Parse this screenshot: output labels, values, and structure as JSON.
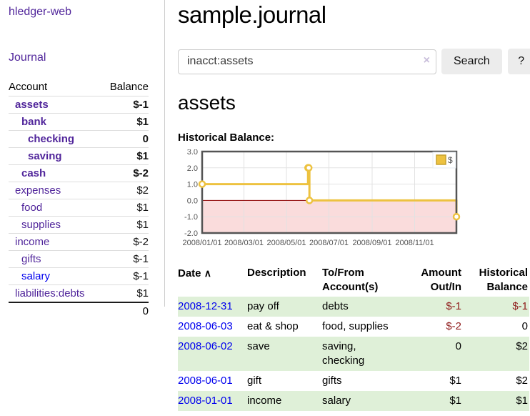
{
  "colors": {
    "link_purple": "#51269b",
    "link_blue": "#0000ee",
    "negative_red": "#8f1c1c",
    "negative_muted": "#bb6a72",
    "stripe_green": "#dff0d8",
    "button_gray": "#ececec",
    "chart_gold": "#edc240",
    "chart_border": "#545454"
  },
  "sidebar": {
    "app_title": "hledger-web",
    "journal_label": "Journal",
    "table": {
      "account_header": "Account",
      "balance_header": "Balance"
    },
    "accounts": [
      {
        "name": "assets",
        "indent": 0,
        "bold": true,
        "balance": "$-1",
        "balance_style": "neg"
      },
      {
        "name": "bank",
        "indent": 1,
        "bold": true,
        "balance": "$1",
        "balance_style": ""
      },
      {
        "name": "checking",
        "indent": 2,
        "bold": true,
        "balance": "0",
        "balance_style": ""
      },
      {
        "name": "saving",
        "indent": 2,
        "bold": true,
        "balance": "$1",
        "balance_style": ""
      },
      {
        "name": "cash",
        "indent": 1,
        "bold": true,
        "balance": "$-2",
        "balance_style": "neg"
      },
      {
        "name": "expenses",
        "indent": 0,
        "bold": false,
        "balance": "$2",
        "balance_style": ""
      },
      {
        "name": "food",
        "indent": 1,
        "bold": false,
        "balance": "$1",
        "balance_style": ""
      },
      {
        "name": "supplies",
        "indent": 1,
        "bold": false,
        "balance": "$1",
        "balance_style": ""
      },
      {
        "name": "income",
        "indent": 0,
        "bold": false,
        "balance": "$-2",
        "balance_style": "neg-muted"
      },
      {
        "name": "gifts",
        "indent": 1,
        "bold": false,
        "balance": "$-1",
        "balance_style": "neg-muted"
      },
      {
        "name": "salary",
        "indent": 1,
        "bold": false,
        "link_style": "blue",
        "balance": "$-1",
        "balance_style": "neg-muted"
      },
      {
        "name": "liabilities:debts",
        "indent": 0,
        "bold": false,
        "balance": "$1",
        "balance_style": ""
      }
    ],
    "total": "0"
  },
  "main": {
    "title": "sample.journal",
    "account_heading": "assets",
    "chart_title": "Historical Balance:"
  },
  "search": {
    "query": "inacct:assets",
    "clear_icon": "×",
    "button_label": "Search",
    "help_label": "?"
  },
  "chart_data": {
    "type": "line",
    "style": "step",
    "title": "Historical Balance",
    "series": [
      {
        "name": "$",
        "color": "#edc240",
        "points": [
          [
            "2008-01-01",
            1
          ],
          [
            "2008-06-01",
            2
          ],
          [
            "2008-06-02",
            2
          ],
          [
            "2008-06-03",
            0
          ],
          [
            "2008-12-31",
            -1
          ]
        ]
      }
    ],
    "ylim": [
      -2,
      3
    ],
    "yticks": [
      3,
      2,
      1,
      0,
      -1,
      -2
    ],
    "xticks": [
      "2008/01/01",
      "2008/03/01",
      "2008/05/01",
      "2008/07/01",
      "2008/09/01",
      "2008/11/01"
    ],
    "legend": {
      "label": "$",
      "position": "top-right"
    },
    "grid": true,
    "negative_fill": "#fadcdc",
    "zero_line_color": "#8b0000"
  },
  "register": {
    "headers": {
      "date": "Date",
      "sort_icon": "∧",
      "description": "Description",
      "account": "To/From Account(s)",
      "amount": "Amount Out/In",
      "balance": "Historical Balance"
    },
    "rows": [
      {
        "date": "2008-12-31",
        "description": "pay off",
        "accounts": "debts",
        "amount": "$-1",
        "amount_neg": true,
        "balance": "$-1",
        "balance_neg": true
      },
      {
        "date": "2008-06-03",
        "description": "eat & shop",
        "accounts": "food, supplies",
        "amount": "$-2",
        "amount_neg": true,
        "balance": "0",
        "balance_neg": false
      },
      {
        "date": "2008-06-02",
        "description": "save",
        "accounts": "saving, checking",
        "amount": "0",
        "amount_neg": false,
        "balance": "$2",
        "balance_neg": false
      },
      {
        "date": "2008-06-01",
        "description": "gift",
        "accounts": "gifts",
        "amount": "$1",
        "amount_neg": false,
        "balance": "$2",
        "balance_neg": false
      },
      {
        "date": "2008-01-01",
        "description": "income",
        "accounts": "salary",
        "amount": "$1",
        "amount_neg": false,
        "balance": "$1",
        "balance_neg": false
      }
    ]
  }
}
